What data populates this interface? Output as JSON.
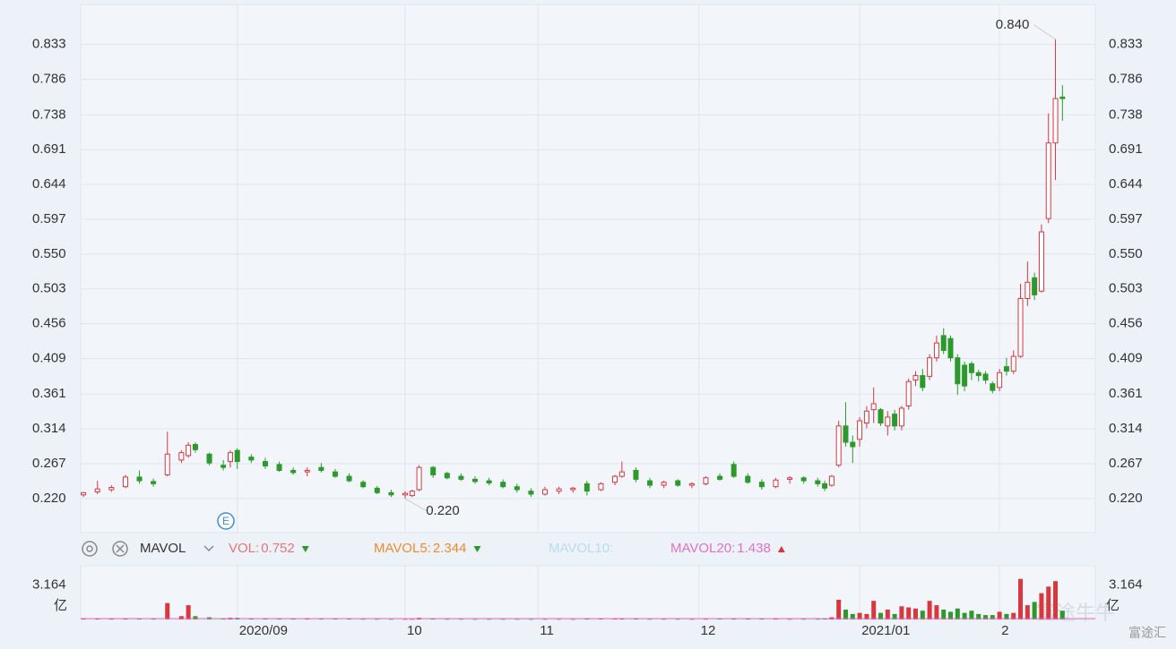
{
  "chart_data": {
    "type": "candlestick",
    "xlim": [
      -0.4,
      144.7
    ],
    "ylim": [
      0.174,
      0.887
    ],
    "yticks": [
      {
        "value": 0.22,
        "label": "0.220"
      },
      0.267,
      0.314,
      0.361,
      0.409,
      0.456,
      0.503,
      {
        "value": 0.55,
        "label": "0.550"
      },
      0.597,
      0.644,
      0.691,
      0.738,
      0.786,
      0.833
    ],
    "xticks": [
      {
        "value": 22,
        "label": "2020/09"
      },
      {
        "value": 46,
        "label": "10"
      },
      {
        "value": 65,
        "label": "11"
      },
      {
        "value": 88,
        "label": "12"
      },
      {
        "value": 111,
        "label": "2021/01"
      },
      {
        "value": 131,
        "label": "2"
      }
    ],
    "grid": true,
    "up_color": "#d9363e",
    "down_color": "#2b9a2b",
    "x": [
      0,
      2,
      4,
      6,
      8,
      10,
      12,
      14,
      15,
      16,
      18,
      20,
      21,
      22,
      24,
      26,
      28,
      30,
      32,
      34,
      36,
      38,
      40,
      42,
      44,
      46,
      47,
      48,
      50,
      52,
      54,
      56,
      58,
      60,
      62,
      64,
      66,
      68,
      70,
      72,
      74,
      76,
      77,
      79,
      81,
      83,
      85,
      87,
      89,
      91,
      93,
      95,
      97,
      99,
      101,
      103,
      105,
      106,
      107,
      108,
      109,
      110,
      111,
      112,
      113,
      114,
      115,
      116,
      117,
      118,
      119,
      120,
      121,
      122,
      123,
      124,
      125,
      126,
      127,
      128,
      129,
      130,
      131,
      132,
      133,
      134,
      135,
      136,
      137,
      138,
      139,
      140
    ],
    "ohlc": [
      [
        0.225,
        0.229,
        0.222,
        0.228
      ],
      [
        0.229,
        0.244,
        0.226,
        0.233
      ],
      [
        0.232,
        0.238,
        0.229,
        0.235
      ],
      [
        0.236,
        0.252,
        0.234,
        0.249
      ],
      [
        0.249,
        0.258,
        0.24,
        0.244
      ],
      [
        0.243,
        0.247,
        0.236,
        0.24
      ],
      [
        0.252,
        0.31,
        0.25,
        0.28
      ],
      [
        0.272,
        0.285,
        0.268,
        0.282
      ],
      [
        0.278,
        0.296,
        0.275,
        0.292
      ],
      [
        0.293,
        0.296,
        0.282,
        0.286
      ],
      [
        0.28,
        0.282,
        0.265,
        0.268
      ],
      [
        0.265,
        0.272,
        0.258,
        0.262
      ],
      [
        0.27,
        0.285,
        0.262,
        0.282
      ],
      [
        0.285,
        0.288,
        0.26,
        0.27
      ],
      [
        0.276,
        0.28,
        0.268,
        0.272
      ],
      [
        0.27,
        0.275,
        0.26,
        0.264
      ],
      [
        0.266,
        0.27,
        0.256,
        0.258
      ],
      [
        0.258,
        0.262,
        0.252,
        0.255
      ],
      [
        0.256,
        0.262,
        0.25,
        0.258
      ],
      [
        0.262,
        0.268,
        0.255,
        0.258
      ],
      [
        0.256,
        0.26,
        0.248,
        0.25
      ],
      [
        0.25,
        0.254,
        0.242,
        0.244
      ],
      [
        0.242,
        0.245,
        0.234,
        0.236
      ],
      [
        0.234,
        0.237,
        0.226,
        0.228
      ],
      [
        0.228,
        0.232,
        0.222,
        0.225
      ],
      [
        0.225,
        0.23,
        0.22,
        0.227
      ],
      [
        0.224,
        0.232,
        0.222,
        0.23
      ],
      [
        0.232,
        0.265,
        0.23,
        0.262
      ],
      [
        0.262,
        0.264,
        0.248,
        0.252
      ],
      [
        0.254,
        0.256,
        0.246,
        0.248
      ],
      [
        0.25,
        0.254,
        0.244,
        0.246
      ],
      [
        0.246,
        0.25,
        0.24,
        0.243
      ],
      [
        0.244,
        0.248,
        0.238,
        0.241
      ],
      [
        0.242,
        0.246,
        0.234,
        0.236
      ],
      [
        0.236,
        0.24,
        0.228,
        0.232
      ],
      [
        0.23,
        0.234,
        0.222,
        0.226
      ],
      [
        0.226,
        0.236,
        0.224,
        0.232
      ],
      [
        0.23,
        0.236,
        0.226,
        0.233
      ],
      [
        0.232,
        0.236,
        0.228,
        0.234
      ],
      [
        0.24,
        0.244,
        0.224,
        0.23
      ],
      [
        0.232,
        0.242,
        0.23,
        0.24
      ],
      [
        0.242,
        0.252,
        0.238,
        0.25
      ],
      [
        0.25,
        0.27,
        0.248,
        0.256
      ],
      [
        0.258,
        0.262,
        0.242,
        0.246
      ],
      [
        0.244,
        0.248,
        0.234,
        0.238
      ],
      [
        0.238,
        0.244,
        0.234,
        0.242
      ],
      [
        0.244,
        0.246,
        0.236,
        0.238
      ],
      [
        0.238,
        0.242,
        0.234,
        0.24
      ],
      [
        0.24,
        0.25,
        0.238,
        0.248
      ],
      [
        0.25,
        0.254,
        0.244,
        0.246
      ],
      [
        0.266,
        0.27,
        0.248,
        0.25
      ],
      [
        0.25,
        0.254,
        0.24,
        0.242
      ],
      [
        0.242,
        0.246,
        0.232,
        0.236
      ],
      [
        0.236,
        0.248,
        0.234,
        0.245
      ],
      [
        0.246,
        0.25,
        0.24,
        0.248
      ],
      [
        0.248,
        0.25,
        0.24,
        0.244
      ],
      [
        0.244,
        0.248,
        0.236,
        0.24
      ],
      [
        0.24,
        0.244,
        0.23,
        0.234
      ],
      [
        0.238,
        0.252,
        0.236,
        0.25
      ],
      [
        0.265,
        0.325,
        0.262,
        0.318
      ],
      [
        0.318,
        0.35,
        0.29,
        0.296
      ],
      [
        0.296,
        0.305,
        0.268,
        0.29
      ],
      [
        0.3,
        0.33,
        0.29,
        0.325
      ],
      [
        0.322,
        0.345,
        0.315,
        0.338
      ],
      [
        0.34,
        0.37,
        0.322,
        0.348
      ],
      [
        0.34,
        0.342,
        0.318,
        0.322
      ],
      [
        0.318,
        0.338,
        0.305,
        0.33
      ],
      [
        0.334,
        0.34,
        0.312,
        0.318
      ],
      [
        0.318,
        0.345,
        0.312,
        0.342
      ],
      [
        0.345,
        0.382,
        0.34,
        0.378
      ],
      [
        0.38,
        0.392,
        0.372,
        0.386
      ],
      [
        0.386,
        0.395,
        0.365,
        0.37
      ],
      [
        0.385,
        0.415,
        0.38,
        0.41
      ],
      [
        0.41,
        0.44,
        0.405,
        0.43
      ],
      [
        0.44,
        0.45,
        0.415,
        0.42
      ],
      [
        0.436,
        0.44,
        0.405,
        0.41
      ],
      [
        0.41,
        0.415,
        0.36,
        0.375
      ],
      [
        0.4,
        0.405,
        0.365,
        0.372
      ],
      [
        0.402,
        0.405,
        0.38,
        0.39
      ],
      [
        0.39,
        0.394,
        0.378,
        0.386
      ],
      [
        0.388,
        0.392,
        0.375,
        0.38
      ],
      [
        0.375,
        0.378,
        0.362,
        0.366
      ],
      [
        0.37,
        0.395,
        0.365,
        0.39
      ],
      [
        0.398,
        0.41,
        0.386,
        0.392
      ],
      [
        0.392,
        0.42,
        0.388,
        0.412
      ],
      [
        0.412,
        0.51,
        0.41,
        0.49
      ],
      [
        0.49,
        0.54,
        0.48,
        0.512
      ],
      [
        0.518,
        0.525,
        0.488,
        0.495
      ],
      [
        0.5,
        0.59,
        0.498,
        0.58
      ],
      [
        0.598,
        0.74,
        0.592,
        0.7
      ],
      [
        0.7,
        0.84,
        0.65,
        0.76
      ],
      [
        0.762,
        0.778,
        0.73,
        0.76
      ]
    ],
    "volume": [
      0.08,
      0.1,
      0.05,
      0.08,
      0.05,
      0.04,
      1.5,
      0.3,
      1.3,
      0.3,
      0.2,
      0.1,
      0.15,
      0.15,
      0.1,
      0.1,
      0.08,
      0.06,
      0.05,
      0.06,
      0.05,
      0.04,
      0.03,
      0.03,
      0.02,
      0.02,
      0.02,
      0.15,
      0.05,
      0.03,
      0.03,
      0.02,
      0.02,
      0.02,
      0.02,
      0.02,
      0.02,
      0.02,
      0.02,
      0.05,
      0.05,
      0.06,
      0.1,
      0.08,
      0.03,
      0.03,
      0.03,
      0.02,
      0.03,
      0.04,
      0.1,
      0.05,
      0.04,
      0.04,
      0.03,
      0.03,
      0.03,
      0.04,
      0.2,
      1.8,
      0.9,
      0.5,
      0.6,
      0.5,
      1.7,
      0.6,
      0.9,
      0.5,
      1.2,
      1.1,
      1.0,
      0.8,
      1.7,
      1.3,
      0.9,
      0.7,
      1.0,
      0.6,
      0.8,
      0.5,
      0.4,
      0.4,
      0.7,
      0.5,
      0.6,
      3.7,
      1.3,
      1.6,
      2.4,
      3.0,
      3.5,
      0.8
    ],
    "volume_ylim": [
      0,
      4.25
    ],
    "volume_yticks": [
      {
        "value": 3.164,
        "label": "3.164"
      }
    ],
    "volume_unit": "亿",
    "annotations": [
      {
        "value": 0.84,
        "label": "0.840",
        "x": 139
      },
      {
        "value": 0.22,
        "label": "0.220",
        "x": 46
      }
    ],
    "event_marker": "E",
    "indicator": "MAVOL",
    "legend": [
      {
        "name": "VOL:",
        "value": 0.752,
        "color": "#e8737a",
        "trend": "down"
      },
      {
        "name": "MAVOL5:",
        "value": 2.344,
        "color": "#f08a2c",
        "trend": "down"
      },
      {
        "name": "MAVOL10:",
        "color": "#b9dcf0"
      },
      {
        "name": "MAVOL20:",
        "value": 1.438,
        "color": "#e070c8",
        "trend": "up"
      }
    ],
    "watermark": [
      "富途牛牛",
      "富途汇"
    ]
  }
}
